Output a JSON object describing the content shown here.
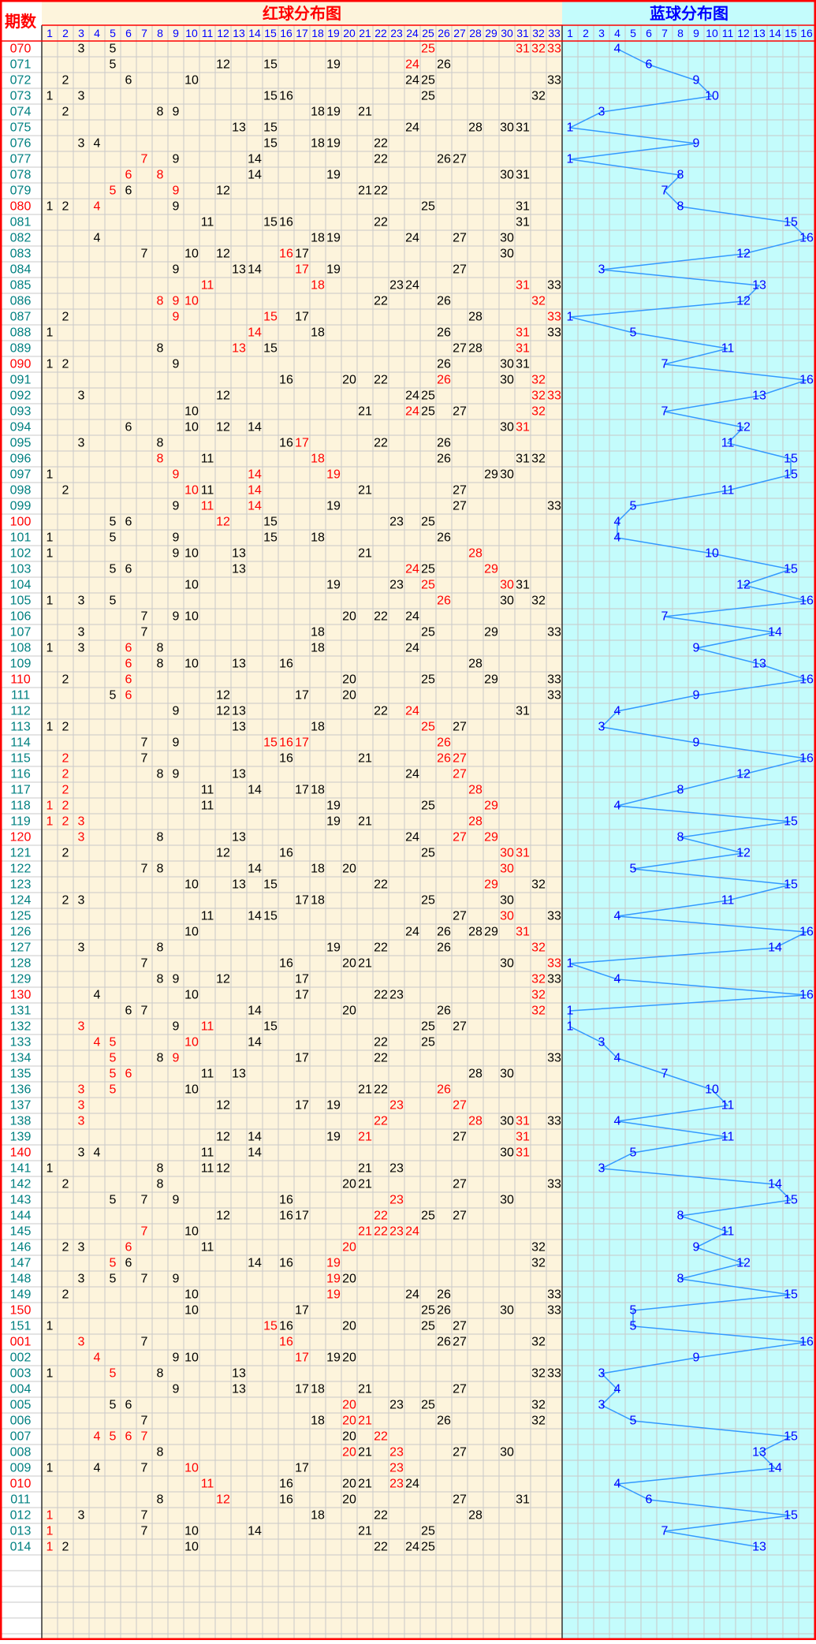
{
  "header": {
    "issue_label": "期数",
    "red_title": "红球分布图",
    "blue_title": "蓝球分布图",
    "red_columns": [
      1,
      2,
      3,
      4,
      5,
      6,
      7,
      8,
      9,
      10,
      11,
      12,
      13,
      14,
      15,
      16,
      17,
      18,
      19,
      20,
      21,
      22,
      23,
      24,
      25,
      26,
      27,
      28,
      29,
      30,
      31,
      32,
      33
    ],
    "blue_columns": [
      1,
      2,
      3,
      4,
      5,
      6,
      7,
      8,
      9,
      10,
      11,
      12,
      13,
      14,
      15,
      16
    ]
  },
  "rows": [
    {
      "issue": "070",
      "black": [
        3,
        5
      ],
      "red": [
        25,
        31,
        32,
        33
      ],
      "blue": 4
    },
    {
      "issue": "071",
      "black": [
        5,
        12,
        15,
        19,
        26
      ],
      "red": [
        24
      ],
      "blue": 6
    },
    {
      "issue": "072",
      "black": [
        2,
        6,
        10,
        24,
        25,
        33
      ],
      "red": [],
      "blue": 9
    },
    {
      "issue": "073",
      "black": [
        1,
        3,
        15,
        16,
        25,
        32
      ],
      "red": [],
      "blue": 10
    },
    {
      "issue": "074",
      "black": [
        2,
        8,
        9,
        18,
        19,
        21
      ],
      "red": [],
      "blue": 3
    },
    {
      "issue": "075",
      "black": [
        13,
        15,
        24,
        28,
        30,
        31
      ],
      "red": [],
      "blue": 1
    },
    {
      "issue": "076",
      "black": [
        3,
        4,
        15,
        18,
        19,
        22
      ],
      "red": [],
      "blue": 9
    },
    {
      "issue": "077",
      "black": [
        9,
        14,
        22,
        26,
        27
      ],
      "red": [
        7
      ],
      "blue": 1
    },
    {
      "issue": "078",
      "black": [
        14,
        19,
        30,
        31
      ],
      "red": [
        6,
        8
      ],
      "blue": 8
    },
    {
      "issue": "079",
      "black": [
        6,
        12,
        21,
        22
      ],
      "red": [
        5,
        9
      ],
      "blue": 7
    },
    {
      "issue": "080",
      "black": [
        1,
        2,
        9,
        25,
        31
      ],
      "red": [
        4
      ],
      "blue": 8
    },
    {
      "issue": "081",
      "black": [
        11,
        15,
        16,
        22,
        31
      ],
      "red": [],
      "blue": 15
    },
    {
      "issue": "082",
      "black": [
        4,
        18,
        19,
        24,
        27,
        30
      ],
      "red": [],
      "blue": 16
    },
    {
      "issue": "083",
      "black": [
        7,
        10,
        12,
        17,
        30
      ],
      "red": [
        16
      ],
      "blue": 12
    },
    {
      "issue": "084",
      "black": [
        9,
        13,
        14,
        19,
        27
      ],
      "red": [
        17
      ],
      "blue": 3
    },
    {
      "issue": "085",
      "black": [
        23,
        24,
        33
      ],
      "red": [
        11,
        18,
        31
      ],
      "blue": 13
    },
    {
      "issue": "086",
      "black": [
        22,
        26
      ],
      "red": [
        8,
        9,
        10,
        32
      ],
      "blue": 12
    },
    {
      "issue": "087",
      "black": [
        2,
        17,
        28
      ],
      "red": [
        9,
        15,
        33
      ],
      "blue": 1
    },
    {
      "issue": "088",
      "black": [
        1,
        18,
        26,
        33
      ],
      "red": [
        14,
        31
      ],
      "blue": 5
    },
    {
      "issue": "089",
      "black": [
        8,
        15,
        27,
        28
      ],
      "red": [
        13,
        31
      ],
      "blue": 11
    },
    {
      "issue": "090",
      "black": [
        1,
        2,
        9,
        26,
        30,
        31
      ],
      "red": [],
      "blue": 7
    },
    {
      "issue": "091",
      "black": [
        16,
        20,
        22,
        30
      ],
      "red": [
        26,
        32
      ],
      "blue": 16
    },
    {
      "issue": "092",
      "black": [
        3,
        12,
        24,
        25
      ],
      "red": [
        32,
        33
      ],
      "blue": 13
    },
    {
      "issue": "093",
      "black": [
        10,
        21,
        25,
        27
      ],
      "red": [
        24,
        32
      ],
      "blue": 7
    },
    {
      "issue": "094",
      "black": [
        6,
        10,
        12,
        14,
        30
      ],
      "red": [
        31
      ],
      "blue": 12
    },
    {
      "issue": "095",
      "black": [
        3,
        8,
        16,
        22,
        26
      ],
      "red": [
        17
      ],
      "blue": 11
    },
    {
      "issue": "096",
      "black": [
        11,
        26,
        31,
        32
      ],
      "red": [
        8,
        18
      ],
      "blue": 15
    },
    {
      "issue": "097",
      "black": [
        1,
        29,
        30
      ],
      "red": [
        9,
        14,
        19
      ],
      "blue": 15
    },
    {
      "issue": "098",
      "black": [
        2,
        11,
        21,
        27
      ],
      "red": [
        10,
        14
      ],
      "blue": 11
    },
    {
      "issue": "099",
      "black": [
        9,
        19,
        27,
        33
      ],
      "red": [
        11,
        14
      ],
      "blue": 5
    },
    {
      "issue": "100",
      "black": [
        5,
        6,
        15,
        23,
        25
      ],
      "red": [
        12
      ],
      "blue": 4
    },
    {
      "issue": "101",
      "black": [
        1,
        5,
        9,
        15,
        18,
        26
      ],
      "red": [],
      "blue": 4
    },
    {
      "issue": "102",
      "black": [
        1,
        9,
        10,
        13,
        21
      ],
      "red": [
        28
      ],
      "blue": 10
    },
    {
      "issue": "103",
      "black": [
        5,
        6,
        13,
        25
      ],
      "red": [
        24,
        29
      ],
      "blue": 15
    },
    {
      "issue": "104",
      "black": [
        10,
        19,
        23,
        31
      ],
      "red": [
        25,
        30
      ],
      "blue": 12
    },
    {
      "issue": "105",
      "black": [
        1,
        3,
        5,
        30,
        32
      ],
      "red": [
        26
      ],
      "blue": 16
    },
    {
      "issue": "106",
      "black": [
        7,
        9,
        10,
        20,
        22,
        24
      ],
      "red": [],
      "blue": 7
    },
    {
      "issue": "107",
      "black": [
        3,
        7,
        18,
        25,
        29,
        33
      ],
      "red": [],
      "blue": 14
    },
    {
      "issue": "108",
      "black": [
        1,
        3,
        8,
        18,
        24
      ],
      "red": [
        6
      ],
      "blue": 9
    },
    {
      "issue": "109",
      "black": [
        8,
        10,
        13,
        16,
        28
      ],
      "red": [
        6
      ],
      "blue": 13
    },
    {
      "issue": "110",
      "black": [
        2,
        20,
        25,
        29,
        33
      ],
      "red": [
        6
      ],
      "blue": 16
    },
    {
      "issue": "111",
      "black": [
        5,
        12,
        17,
        20,
        33
      ],
      "red": [
        6
      ],
      "blue": 9
    },
    {
      "issue": "112",
      "black": [
        9,
        12,
        13,
        22,
        31
      ],
      "red": [
        24
      ],
      "blue": 4
    },
    {
      "issue": "113",
      "black": [
        1,
        2,
        13,
        18,
        27
      ],
      "red": [
        25
      ],
      "blue": 3
    },
    {
      "issue": "114",
      "black": [
        7,
        9
      ],
      "red": [
        15,
        16,
        17,
        26
      ],
      "blue": 9
    },
    {
      "issue": "115",
      "black": [
        7,
        16,
        21
      ],
      "red": [
        2,
        26,
        27
      ],
      "blue": 16
    },
    {
      "issue": "116",
      "black": [
        8,
        9,
        13,
        24
      ],
      "red": [
        2,
        27
      ],
      "blue": 12
    },
    {
      "issue": "117",
      "black": [
        11,
        14,
        17,
        18
      ],
      "red": [
        2,
        28
      ],
      "blue": 8
    },
    {
      "issue": "118",
      "black": [
        11,
        19,
        25
      ],
      "red": [
        1,
        2,
        29
      ],
      "blue": 4
    },
    {
      "issue": "119",
      "black": [
        19,
        21
      ],
      "red": [
        1,
        2,
        3,
        28
      ],
      "blue": 15
    },
    {
      "issue": "120",
      "black": [
        8,
        13,
        24
      ],
      "red": [
        3,
        27,
        29
      ],
      "blue": 8
    },
    {
      "issue": "121",
      "black": [
        2,
        12,
        16,
        25
      ],
      "red": [
        30,
        31
      ],
      "blue": 12
    },
    {
      "issue": "122",
      "black": [
        7,
        8,
        14,
        18,
        20
      ],
      "red": [
        30
      ],
      "blue": 5
    },
    {
      "issue": "123",
      "black": [
        10,
        13,
        15,
        22,
        32
      ],
      "red": [
        29
      ],
      "blue": 15
    },
    {
      "issue": "124",
      "black": [
        2,
        3,
        17,
        18,
        25,
        30
      ],
      "red": [],
      "blue": 11
    },
    {
      "issue": "125",
      "black": [
        11,
        14,
        15,
        27,
        33
      ],
      "red": [
        30
      ],
      "blue": 4
    },
    {
      "issue": "126",
      "black": [
        10,
        24,
        26,
        28,
        29
      ],
      "red": [
        31
      ],
      "blue": 16
    },
    {
      "issue": "127",
      "black": [
        3,
        8,
        19,
        22,
        26
      ],
      "red": [
        32
      ],
      "blue": 14
    },
    {
      "issue": "128",
      "black": [
        7,
        16,
        20,
        21,
        30
      ],
      "red": [
        33
      ],
      "blue": 1
    },
    {
      "issue": "129",
      "black": [
        8,
        9,
        12,
        17,
        33
      ],
      "red": [
        32
      ],
      "blue": 4
    },
    {
      "issue": "130",
      "black": [
        4,
        10,
        17,
        22,
        23
      ],
      "red": [
        32
      ],
      "blue": 16
    },
    {
      "issue": "131",
      "black": [
        6,
        7,
        14,
        20,
        26
      ],
      "red": [
        32
      ],
      "blue": 1
    },
    {
      "issue": "132",
      "black": [
        9,
        15,
        25,
        27
      ],
      "red": [
        3,
        11
      ],
      "blue": 1
    },
    {
      "issue": "133",
      "black": [
        14,
        22,
        25
      ],
      "red": [
        4,
        5,
        10
      ],
      "blue": 3
    },
    {
      "issue": "134",
      "black": [
        8,
        17,
        22,
        33
      ],
      "red": [
        5,
        9
      ],
      "blue": 4
    },
    {
      "issue": "135",
      "black": [
        11,
        13,
        28,
        30
      ],
      "red": [
        5,
        6
      ],
      "blue": 7
    },
    {
      "issue": "136",
      "black": [
        10,
        21,
        22
      ],
      "red": [
        3,
        5,
        26
      ],
      "blue": 10
    },
    {
      "issue": "137",
      "black": [
        12,
        17,
        19
      ],
      "red": [
        3,
        23,
        27
      ],
      "blue": 11
    },
    {
      "issue": "138",
      "black": [
        30,
        33
      ],
      "red": [
        3,
        22,
        28,
        31
      ],
      "blue": 4
    },
    {
      "issue": "139",
      "black": [
        12,
        14,
        19,
        27
      ],
      "red": [
        21,
        31
      ],
      "blue": 11
    },
    {
      "issue": "140",
      "black": [
        3,
        4,
        11,
        14,
        30
      ],
      "red": [
        31
      ],
      "blue": 5
    },
    {
      "issue": "141",
      "black": [
        1,
        8,
        11,
        12,
        21,
        23
      ],
      "red": [],
      "blue": 3
    },
    {
      "issue": "142",
      "black": [
        2,
        8,
        20,
        21,
        27,
        33
      ],
      "red": [],
      "blue": 14
    },
    {
      "issue": "143",
      "black": [
        5,
        7,
        9,
        16,
        30
      ],
      "red": [
        23
      ],
      "blue": 15
    },
    {
      "issue": "144",
      "black": [
        12,
        16,
        17,
        25,
        27
      ],
      "red": [
        22
      ],
      "blue": 8
    },
    {
      "issue": "145",
      "black": [
        10
      ],
      "red": [
        7,
        21,
        22,
        23,
        24
      ],
      "blue": 11
    },
    {
      "issue": "146",
      "black": [
        2,
        3,
        11,
        32
      ],
      "red": [
        6,
        20
      ],
      "blue": 9
    },
    {
      "issue": "147",
      "black": [
        6,
        14,
        16,
        32
      ],
      "red": [
        5,
        19
      ],
      "blue": 12
    },
    {
      "issue": "148",
      "black": [
        3,
        5,
        7,
        9,
        20
      ],
      "red": [
        19
      ],
      "blue": 8
    },
    {
      "issue": "149",
      "black": [
        2,
        10,
        24,
        26,
        33
      ],
      "red": [
        19
      ],
      "blue": 15
    },
    {
      "issue": "150",
      "black": [
        10,
        17,
        25,
        26,
        30,
        33
      ],
      "red": [],
      "blue": 5
    },
    {
      "issue": "151",
      "black": [
        1,
        16,
        20,
        25,
        27
      ],
      "red": [
        15
      ],
      "blue": 5
    },
    {
      "issue": "001",
      "black": [
        7,
        26,
        27,
        32
      ],
      "red": [
        3,
        16
      ],
      "blue": 16
    },
    {
      "issue": "002",
      "black": [
        9,
        10,
        19,
        20
      ],
      "red": [
        4,
        17
      ],
      "blue": 9
    },
    {
      "issue": "003",
      "black": [
        1,
        8,
        13,
        32,
        33
      ],
      "red": [
        5
      ],
      "blue": 3
    },
    {
      "issue": "004",
      "black": [
        9,
        13,
        17,
        18,
        21,
        27
      ],
      "red": [],
      "blue": 4
    },
    {
      "issue": "005",
      "black": [
        5,
        6,
        23,
        25,
        32
      ],
      "red": [
        20
      ],
      "blue": 3
    },
    {
      "issue": "006",
      "black": [
        7,
        18,
        26,
        32
      ],
      "red": [
        20,
        21
      ],
      "blue": 5
    },
    {
      "issue": "007",
      "black": [
        20
      ],
      "red": [
        4,
        5,
        6,
        7,
        22
      ],
      "blue": 15
    },
    {
      "issue": "008",
      "black": [
        8,
        21,
        27,
        30
      ],
      "red": [
        20,
        23
      ],
      "blue": 13
    },
    {
      "issue": "009",
      "black": [
        1,
        4,
        7,
        17
      ],
      "red": [
        10,
        23
      ],
      "blue": 14
    },
    {
      "issue": "010",
      "black": [
        16,
        20,
        21,
        24
      ],
      "red": [
        11,
        23
      ],
      "blue": 4
    },
    {
      "issue": "011",
      "black": [
        8,
        16,
        20,
        27,
        31
      ],
      "red": [
        12
      ],
      "blue": 6
    },
    {
      "issue": "012",
      "black": [
        3,
        7,
        18,
        22,
        28
      ],
      "red": [
        1
      ],
      "blue": 15
    },
    {
      "issue": "013",
      "black": [
        7,
        10,
        14,
        21,
        25
      ],
      "red": [
        1
      ],
      "blue": 7
    },
    {
      "issue": "014",
      "black": [
        2,
        10,
        22,
        24,
        25
      ],
      "red": [
        1
      ],
      "blue": 13
    }
  ]
}
